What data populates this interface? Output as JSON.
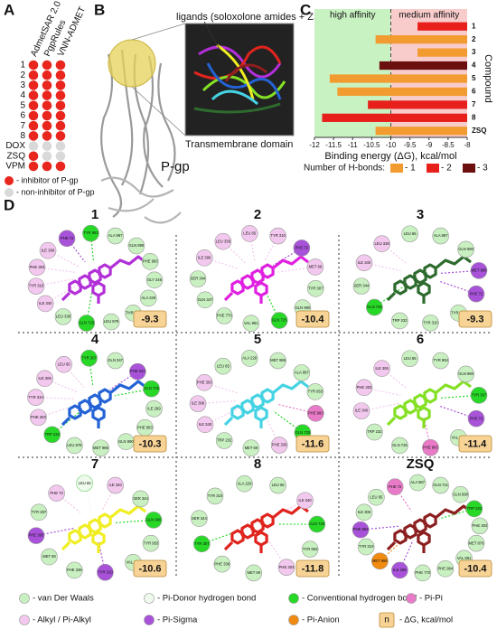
{
  "panel_labels": [
    "A",
    "B",
    "C",
    "D"
  ],
  "panel_a": {
    "columns": [
      "AdmetSAR 2.0",
      "PgpRules",
      "VNN-ADMET"
    ],
    "rows": [
      "1",
      "2",
      "3",
      "4",
      "5",
      "6",
      "7",
      "8",
      "DOX",
      "ZSQ",
      "VPM"
    ],
    "cells": [
      [
        0,
        0,
        0
      ],
      [
        0,
        0,
        0
      ],
      [
        0,
        0,
        0
      ],
      [
        0,
        0,
        0
      ],
      [
        0,
        0,
        0
      ],
      [
        0,
        0,
        0
      ],
      [
        0,
        0,
        0
      ],
      [
        0,
        0,
        0
      ],
      [
        1,
        1,
        1
      ],
      [
        0,
        1,
        1
      ],
      [
        0,
        0,
        0
      ]
    ],
    "legend": [
      {
        "label": "- inhibitor of P-gp",
        "color": "#e8261e"
      },
      {
        "label": "- non-inhibitor of P-gp",
        "color": "#d9d9d9"
      }
    ]
  },
  "panel_b": {
    "ligands_label": "ligands (soloxolone amides + ZSQ)",
    "domain_label": "Transmembrane domain",
    "protein_label": "P-gp"
  },
  "chart_data": {
    "type": "bar",
    "orientation": "horizontal",
    "categories": [
      "1",
      "2",
      "3",
      "4",
      "5",
      "6",
      "7",
      "8",
      "ZSQ"
    ],
    "values": [
      -9.3,
      -10.4,
      -9.3,
      -10.3,
      -11.6,
      -11.4,
      -10.6,
      -11.8,
      -10.4
    ],
    "hbonds": [
      2,
      1,
      1,
      3,
      1,
      1,
      2,
      2,
      1
    ],
    "xlim": [
      -12,
      -8
    ],
    "xticks": [
      -12,
      -11.5,
      -11,
      -10.5,
      -10,
      -9.5,
      -9,
      -8.5,
      -8
    ],
    "xlabel": "Binding energy (ΔG), kcal/mol",
    "ylabel": "Compound",
    "regions": [
      {
        "label": "high affinity",
        "from": -12,
        "to": -10,
        "color": "#c9f2c2"
      },
      {
        "label": "medium affinity",
        "from": -10,
        "to": -8,
        "color": "#f9cccc"
      }
    ],
    "legend_title": "Number of H-bonds:",
    "hbond_legend": [
      {
        "value": 1,
        "label": "- 1",
        "color": "#f29b30"
      },
      {
        "value": 2,
        "label": "- 2",
        "color": "#e8201c"
      },
      {
        "value": 3,
        "label": "- 3",
        "color": "#6b0f0f"
      }
    ]
  },
  "panel_d": {
    "panels": [
      {
        "label": "1",
        "dg": -9.3,
        "color": "#b22fd8",
        "residues": [
          {
            "name": "ALA 987",
            "type": 0
          },
          {
            "name": "GLN 990",
            "type": 0
          },
          {
            "name": "PHE 983",
            "type": 0
          },
          {
            "name": "GLY 346",
            "type": 0
          },
          {
            "name": "ALA 229",
            "type": 0
          },
          {
            "name": "THR 230",
            "type": 0
          },
          {
            "name": "LEU 879",
            "type": 0
          },
          {
            "name": "GLN 725",
            "type": 2
          },
          {
            "name": "LEU 339",
            "type": 0
          },
          {
            "name": "ILE 340",
            "type": 4
          },
          {
            "name": "TYR 310",
            "type": 4
          },
          {
            "name": "PHE 303",
            "type": 4
          },
          {
            "name": "ILE 306",
            "type": 4
          },
          {
            "name": "PHE 72",
            "type": 5
          },
          {
            "name": "TYR 953",
            "type": 2
          }
        ]
      },
      {
        "label": "2",
        "dg": -10.4,
        "color": "#e020e0",
        "residues": [
          {
            "name": "TYR 310",
            "type": 4
          },
          {
            "name": "PHE 72",
            "type": 5
          },
          {
            "name": "MET 69",
            "type": 4
          },
          {
            "name": "TYR 307",
            "type": 0
          },
          {
            "name": "GLN 990",
            "type": 0
          },
          {
            "name": "GLN 725",
            "type": 2
          },
          {
            "name": "VAL 981",
            "type": 0
          },
          {
            "name": "PHE 770",
            "type": 0
          },
          {
            "name": "GLN 347",
            "type": 0
          },
          {
            "name": "SER 344",
            "type": 0
          },
          {
            "name": "ILE 306",
            "type": 4
          },
          {
            "name": "LEU 339",
            "type": 4
          },
          {
            "name": "LEU 65",
            "type": 4
          }
        ]
      },
      {
        "label": "3",
        "dg": -9.3,
        "color": "#2e6b2e",
        "residues": [
          {
            "name": "ALA 987",
            "type": 0
          },
          {
            "name": "GLN 990",
            "type": 0
          },
          {
            "name": "MET 986",
            "type": 5
          },
          {
            "name": "PHE 72",
            "type": 5
          },
          {
            "name": "TYR 307",
            "type": 0
          },
          {
            "name": "TYR 310",
            "type": 0
          },
          {
            "name": "TRP 232",
            "type": 0
          },
          {
            "name": "GLN 725",
            "type": 2
          },
          {
            "name": "SER 344",
            "type": 0
          },
          {
            "name": "ILE 340",
            "type": 4
          },
          {
            "name": "LEU 339",
            "type": 4
          },
          {
            "name": "LEU 65",
            "type": 0
          }
        ]
      },
      {
        "label": "4",
        "dg": -10.3,
        "color": "#2463d6",
        "residues": [
          {
            "name": "GLN 347",
            "type": 0
          },
          {
            "name": "PHE 343",
            "type": 5
          },
          {
            "name": "GLN 725",
            "type": 2
          },
          {
            "name": "ILE 299",
            "type": 0
          },
          {
            "name": "PHE 983",
            "type": 0
          },
          {
            "name": "GLN 990",
            "type": 0
          },
          {
            "name": "MET 986",
            "type": 0
          },
          {
            "name": "LEU 879",
            "type": 0
          },
          {
            "name": "TRP 232",
            "type": 2
          },
          {
            "name": "PHE 303",
            "type": 4
          },
          {
            "name": "TYR 310",
            "type": 4
          },
          {
            "name": "ILE 306",
            "type": 4
          },
          {
            "name": "LEU 65",
            "type": 4
          },
          {
            "name": "TYR 307",
            "type": 2
          }
        ]
      },
      {
        "label": "5",
        "dg": -11.6,
        "color": "#45d3e3",
        "residues": [
          {
            "name": "MET 986",
            "type": 0
          },
          {
            "name": "ALA 987",
            "type": 0
          },
          {
            "name": "TYR 953",
            "type": 0
          },
          {
            "name": "PHE 983",
            "type": 3
          },
          {
            "name": "GLN 725",
            "type": 2
          },
          {
            "name": "PHE 336",
            "type": 4
          },
          {
            "name": "MET 69",
            "type": 0
          },
          {
            "name": "TRP 232",
            "type": 0
          },
          {
            "name": "ILE 340",
            "type": 4
          },
          {
            "name": "ILE 306",
            "type": 4
          },
          {
            "name": "PHE 303",
            "type": 4
          },
          {
            "name": "LEU 65",
            "type": 0
          },
          {
            "name": "ALA 229",
            "type": 0
          }
        ]
      },
      {
        "label": "6",
        "dg": -11.4,
        "color": "#84e024",
        "residues": [
          {
            "name": "TYR 953",
            "type": 0
          },
          {
            "name": "GLN 990",
            "type": 0
          },
          {
            "name": "TYR 307",
            "type": 2
          },
          {
            "name": "PHE 72",
            "type": 5
          },
          {
            "name": "VAL 981",
            "type": 0
          },
          {
            "name": "PHE 983",
            "type": 3
          },
          {
            "name": "GLN 725",
            "type": 0
          },
          {
            "name": "TRP 232",
            "type": 0
          },
          {
            "name": "ILE 340",
            "type": 4
          },
          {
            "name": "PHE 303",
            "type": 4
          },
          {
            "name": "ILE 306",
            "type": 4
          },
          {
            "name": "LEU 65",
            "type": 0
          }
        ]
      },
      {
        "label": "7",
        "dg": -10.6,
        "color": "#f0ee22",
        "residues": [
          {
            "name": "ILE 340",
            "type": 4
          },
          {
            "name": "SER 344",
            "type": 0
          },
          {
            "name": "GLN 990",
            "type": 2
          },
          {
            "name": "TYR 953",
            "type": 0
          },
          {
            "name": "VAL 981",
            "type": 0
          },
          {
            "name": "TYR 310",
            "type": 5
          },
          {
            "name": "PHE 336",
            "type": 0
          },
          {
            "name": "MET 69",
            "type": 0
          },
          {
            "name": "PHE 303",
            "type": 5
          },
          {
            "name": "TYR 307",
            "type": 0
          },
          {
            "name": "PHE 72",
            "type": 4
          },
          {
            "name": "LEU 65",
            "type": 1
          }
        ]
      },
      {
        "label": "8",
        "dg": -11.8,
        "color": "#e0241e",
        "residues": [
          {
            "name": "LEU 65",
            "type": 0
          },
          {
            "name": "ILE 340",
            "type": 4
          },
          {
            "name": "GLN 725",
            "type": 2
          },
          {
            "name": "TYR 953",
            "type": 0
          },
          {
            "name": "PHE 303",
            "type": 4
          },
          {
            "name": "MET 69",
            "type": 0
          },
          {
            "name": "PHE 336",
            "type": 0
          },
          {
            "name": "TYR 307",
            "type": 2
          },
          {
            "name": "SER 344",
            "type": 0
          },
          {
            "name": "TYR 310",
            "type": 0
          },
          {
            "name": "ALA 229",
            "type": 0
          }
        ]
      },
      {
        "label": "ZSQ",
        "dg": -10.4,
        "color": "#8c1f1f",
        "residues": [
          {
            "name": "GLN 721",
            "type": 0
          },
          {
            "name": "GLN 990",
            "type": 0
          },
          {
            "name": "TRP 232",
            "type": 2
          },
          {
            "name": "PHE 303",
            "type": 0
          },
          {
            "name": "MET 876",
            "type": 0
          },
          {
            "name": "VAL 991",
            "type": 0
          },
          {
            "name": "PHE 994",
            "type": 0
          },
          {
            "name": "PHE 770",
            "type": 0
          },
          {
            "name": "ILE 299",
            "type": 5
          },
          {
            "name": "MET 986",
            "type": 6
          },
          {
            "name": "TYR 310",
            "type": 0
          },
          {
            "name": "PHE 983",
            "type": 5
          },
          {
            "name": "ILE 306",
            "type": 0
          },
          {
            "name": "LEU 65",
            "type": 0
          },
          {
            "name": "PHE 72",
            "type": 3
          },
          {
            "name": "ALA 987",
            "type": 0
          }
        ]
      }
    ],
    "legend": [
      {
        "label": "- van Der Waals",
        "color": "#c8f0c0"
      },
      {
        "label": "- Pi-Donor hydrogen bond",
        "color": "#eefaec"
      },
      {
        "label": "- Conventional hydrogen bond",
        "color": "#27d827"
      },
      {
        "label": "- Pi-Pi",
        "color": "#e87ac8"
      },
      {
        "label": "- Alkyl / Pi-Alkyl",
        "color": "#f3c8ee"
      },
      {
        "label": "- Pi-Sigma",
        "color": "#a752d8"
      },
      {
        "label": "- Pi-Anion",
        "color": "#f08a10"
      }
    ],
    "dg_legend": {
      "sample": "n",
      "label": "- ΔG, kcal/mol"
    }
  }
}
